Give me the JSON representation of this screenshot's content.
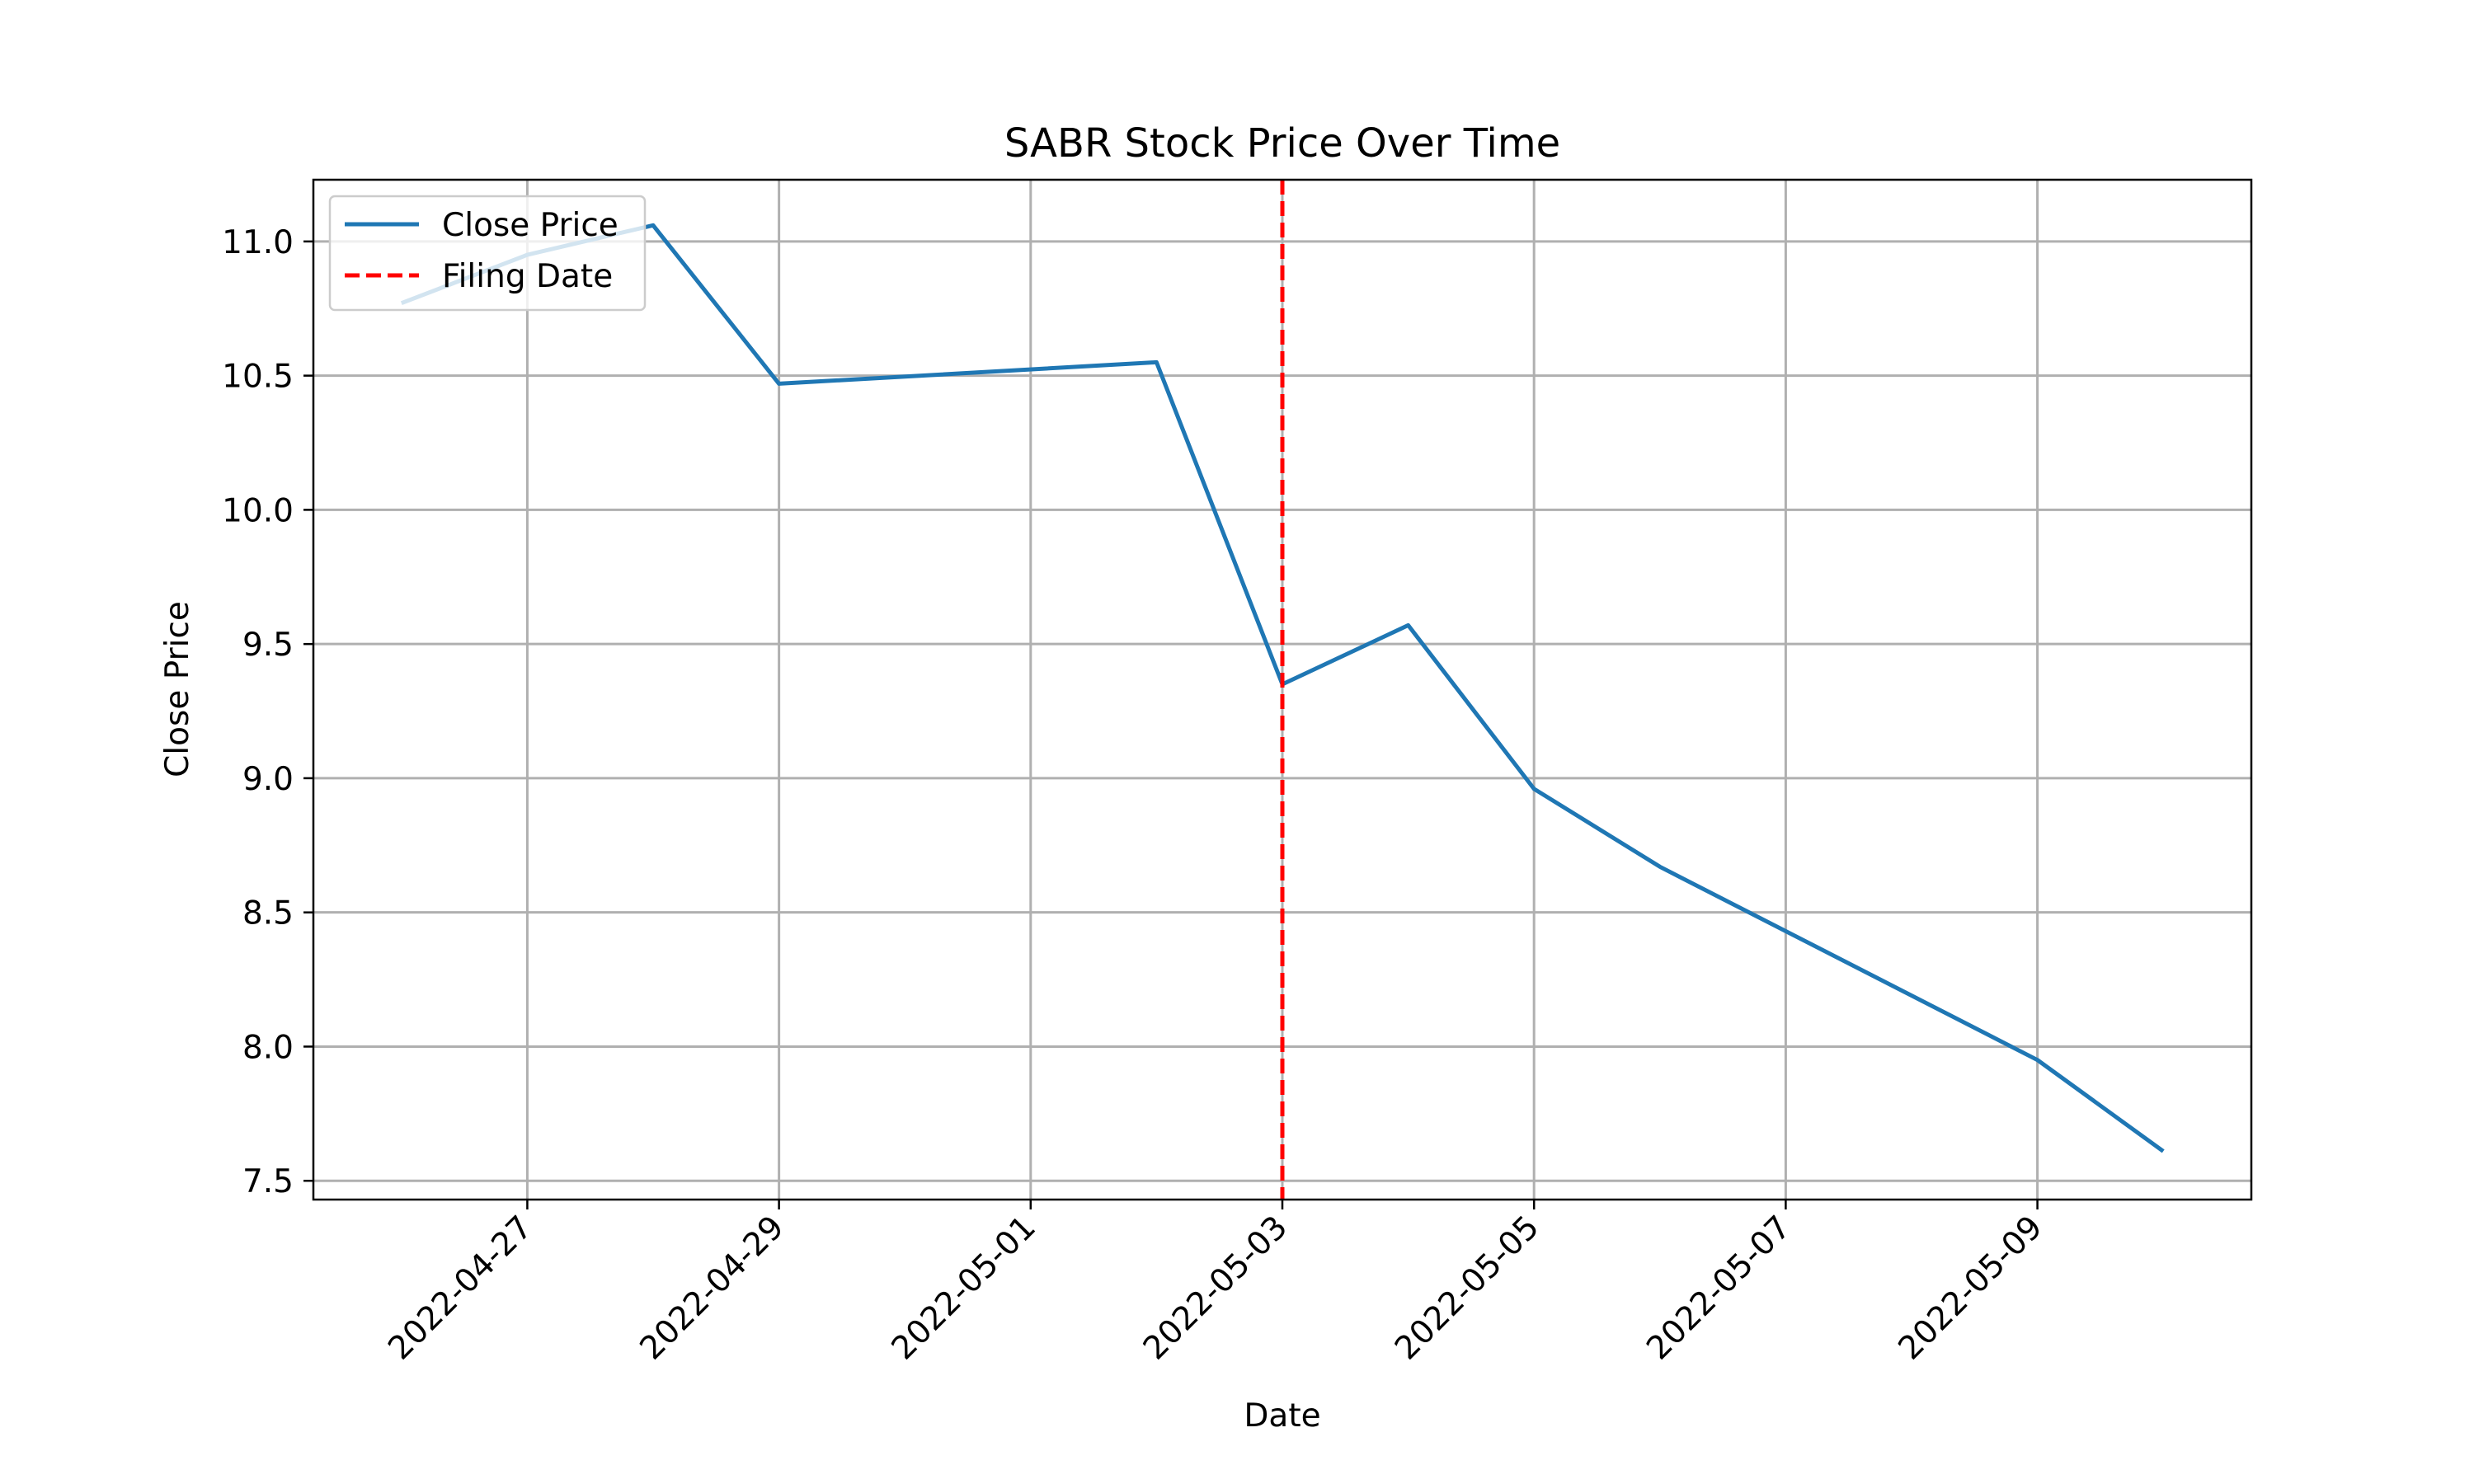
{
  "chart_data": {
    "type": "line",
    "title": "SABR Stock Price Over Time",
    "xlabel": "Date",
    "ylabel": "Close Price",
    "x": [
      "2022-04-26",
      "2022-04-27",
      "2022-04-28",
      "2022-04-29",
      "2022-05-02",
      "2022-05-03",
      "2022-05-04",
      "2022-05-05",
      "2022-05-06",
      "2022-05-09",
      "2022-05-10"
    ],
    "series": [
      {
        "name": "Close Price",
        "color": "#1f77b4",
        "style": "solid",
        "values": [
          10.77,
          10.95,
          11.06,
          10.47,
          10.55,
          9.35,
          9.57,
          8.96,
          8.67,
          7.95,
          7.61
        ]
      }
    ],
    "vlines": [
      {
        "name": "Filing Date",
        "x": "2022-05-03",
        "color": "#ff0000",
        "style": "dashed"
      }
    ],
    "xticks": [
      "2022-04-27",
      "2022-04-29",
      "2022-05-01",
      "2022-05-03",
      "2022-05-05",
      "2022-05-07",
      "2022-05-09"
    ],
    "yticks": [
      "7.5",
      "8.0",
      "8.5",
      "9.0",
      "9.5",
      "10.0",
      "10.5",
      "11.0"
    ],
    "xlim": [
      "2022-04-25T07:12",
      "2022-05-10T16:48"
    ],
    "ylim": [
      7.43,
      11.23
    ],
    "grid": true,
    "legend_position": "upper left"
  }
}
